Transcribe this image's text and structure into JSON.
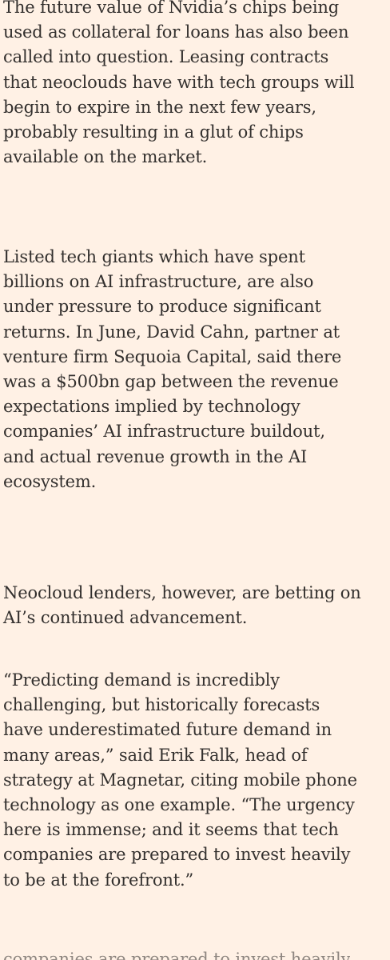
{
  "article": {
    "paragraphs": [
      {
        "lines": [
          "The future value of Nvidia’s chips being",
          "used as collateral for loans has also been",
          "called into question. Leasing contracts",
          "that neoclouds have with tech groups will",
          "begin to expire in the next few years,",
          "probably resulting in a glut of chips",
          "available on the market."
        ]
      },
      {
        "lines": [
          "Listed tech giants which have spent",
          "billions on AI infrastructure, are also",
          "under pressure to produce significant",
          "returns. In June, David Cahn, partner at",
          "venture firm Sequoia Capital, said there",
          "was a $500bn gap between the revenue",
          "expectations implied by technology",
          "companies’ AI infrastructure buildout,",
          "and actual revenue growth in the AI",
          "ecosystem."
        ]
      },
      {
        "lines": [
          "Neocloud lenders, however, are betting on",
          "AI’s continued advancement."
        ]
      },
      {
        "lines": [
          "“Predicting demand is incredibly",
          "challenging, but historically forecasts",
          "have underestimated future demand in",
          "many areas,” said Erik Falk, head of",
          "strategy at Magnetar, citing mobile phone",
          "technology as one example. “The urgency",
          "here is immense; and it seems that tech",
          "companies are prepared to invest heavily",
          "to be at the forefront.”"
        ]
      }
    ],
    "cutoff_line": "companies are prepared to invest heavily"
  }
}
